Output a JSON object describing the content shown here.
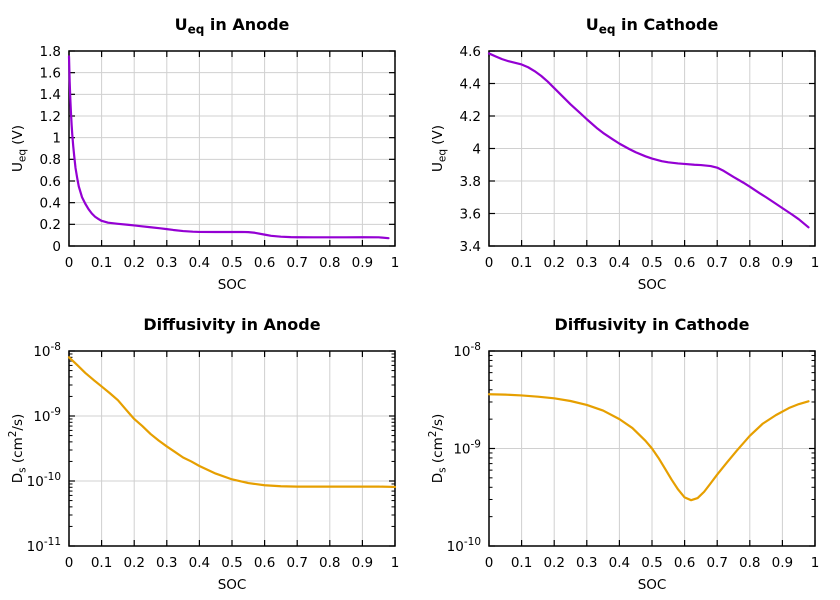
{
  "figure": {
    "background": "#ffffff",
    "text_color": "#000000",
    "grid_color": "#d0d0d0",
    "border_color": "#000000",
    "accent_purple": "#9400d3",
    "accent_orange": "#e69f00"
  },
  "chart_data": [
    {
      "type": "line",
      "title": "U_eq in Anode",
      "title_parts": [
        {
          "t": "U"
        },
        {
          "t": "eq",
          "s": "sub"
        },
        {
          "t": " in Anode"
        }
      ],
      "xlabel": "SOC",
      "ylabel": "U_eq (V)",
      "ylabel_parts": [
        {
          "t": "U"
        },
        {
          "t": "eq",
          "s": "sub"
        },
        {
          "t": " (V)"
        }
      ],
      "x_scale": "linear",
      "y_scale": "linear",
      "xlim": [
        0,
        1
      ],
      "ylim": [
        0,
        1.8
      ],
      "x_tick_values": [
        0,
        0.1,
        0.2,
        0.3,
        0.4,
        0.5,
        0.6,
        0.7,
        0.8,
        0.9,
        1
      ],
      "x_tick_labels": [
        "0",
        "0.1",
        "0.2",
        "0.3",
        "0.4",
        "0.5",
        "0.6",
        "0.7",
        "0.8",
        "0.9",
        "1"
      ],
      "y_tick_values": [
        0,
        0.2,
        0.4,
        0.6,
        0.8,
        1,
        1.2,
        1.4,
        1.6,
        1.8
      ],
      "y_tick_labels": [
        "0",
        "0.2",
        "0.4",
        "0.6",
        "0.8",
        "1",
        "1.2",
        "1.4",
        "1.6",
        "1.8"
      ],
      "grid": true,
      "legend": null,
      "line_color": "#9400d3",
      "line_width": 2.2,
      "points": [
        [
          0,
          1.75
        ],
        [
          0.002,
          1.52
        ],
        [
          0.004,
          1.36
        ],
        [
          0.006,
          1.23
        ],
        [
          0.008,
          1.12
        ],
        [
          0.01,
          1.03
        ],
        [
          0.013,
          0.92
        ],
        [
          0.016,
          0.83
        ],
        [
          0.02,
          0.72
        ],
        [
          0.025,
          0.63
        ],
        [
          0.03,
          0.55
        ],
        [
          0.04,
          0.45
        ],
        [
          0.05,
          0.39
        ],
        [
          0.06,
          0.34
        ],
        [
          0.07,
          0.3
        ],
        [
          0.08,
          0.27
        ],
        [
          0.09,
          0.25
        ],
        [
          0.1,
          0.232
        ],
        [
          0.12,
          0.215
        ],
        [
          0.15,
          0.205
        ],
        [
          0.18,
          0.196
        ],
        [
          0.2,
          0.19
        ],
        [
          0.22,
          0.183
        ],
        [
          0.25,
          0.173
        ],
        [
          0.28,
          0.163
        ],
        [
          0.3,
          0.156
        ],
        [
          0.32,
          0.148
        ],
        [
          0.35,
          0.138
        ],
        [
          0.38,
          0.132
        ],
        [
          0.4,
          0.13
        ],
        [
          0.45,
          0.129
        ],
        [
          0.5,
          0.129
        ],
        [
          0.53,
          0.13
        ],
        [
          0.55,
          0.128
        ],
        [
          0.57,
          0.122
        ],
        [
          0.6,
          0.105
        ],
        [
          0.62,
          0.094
        ],
        [
          0.65,
          0.086
        ],
        [
          0.68,
          0.082
        ],
        [
          0.7,
          0.081
        ],
        [
          0.75,
          0.08
        ],
        [
          0.8,
          0.08
        ],
        [
          0.85,
          0.08
        ],
        [
          0.9,
          0.081
        ],
        [
          0.95,
          0.08
        ],
        [
          0.98,
          0.072
        ]
      ]
    },
    {
      "type": "line",
      "title": "U_eq in Cathode",
      "title_parts": [
        {
          "t": "U"
        },
        {
          "t": "eq",
          "s": "sub"
        },
        {
          "t": " in Cathode"
        }
      ],
      "xlabel": "SOC",
      "ylabel": "U_eq (V)",
      "ylabel_parts": [
        {
          "t": "U"
        },
        {
          "t": "eq",
          "s": "sub"
        },
        {
          "t": " (V)"
        }
      ],
      "x_scale": "linear",
      "y_scale": "linear",
      "xlim": [
        0,
        1
      ],
      "ylim": [
        3.4,
        4.6
      ],
      "x_tick_values": [
        0,
        0.1,
        0.2,
        0.3,
        0.4,
        0.5,
        0.6,
        0.7,
        0.8,
        0.9,
        1
      ],
      "x_tick_labels": [
        "0",
        "0.1",
        "0.2",
        "0.3",
        "0.4",
        "0.5",
        "0.6",
        "0.7",
        "0.8",
        "0.9",
        "1"
      ],
      "y_tick_values": [
        3.4,
        3.6,
        3.8,
        4,
        4.2,
        4.4,
        4.6
      ],
      "y_tick_labels": [
        "3.4",
        "3.6",
        "3.8",
        "4",
        "4.2",
        "4.4",
        "4.6"
      ],
      "grid": true,
      "legend": null,
      "line_color": "#9400d3",
      "line_width": 2.2,
      "points": [
        [
          0,
          4.585
        ],
        [
          0.02,
          4.567
        ],
        [
          0.04,
          4.55
        ],
        [
          0.06,
          4.537
        ],
        [
          0.08,
          4.527
        ],
        [
          0.1,
          4.517
        ],
        [
          0.12,
          4.5
        ],
        [
          0.14,
          4.476
        ],
        [
          0.16,
          4.447
        ],
        [
          0.18,
          4.412
        ],
        [
          0.2,
          4.372
        ],
        [
          0.22,
          4.332
        ],
        [
          0.25,
          4.272
        ],
        [
          0.28,
          4.217
        ],
        [
          0.3,
          4.18
        ],
        [
          0.33,
          4.127
        ],
        [
          0.35,
          4.096
        ],
        [
          0.38,
          4.056
        ],
        [
          0.4,
          4.03
        ],
        [
          0.43,
          3.997
        ],
        [
          0.45,
          3.977
        ],
        [
          0.48,
          3.952
        ],
        [
          0.5,
          3.938
        ],
        [
          0.53,
          3.922
        ],
        [
          0.55,
          3.915
        ],
        [
          0.58,
          3.908
        ],
        [
          0.6,
          3.905
        ],
        [
          0.63,
          3.9
        ],
        [
          0.65,
          3.898
        ],
        [
          0.68,
          3.892
        ],
        [
          0.7,
          3.882
        ],
        [
          0.72,
          3.862
        ],
        [
          0.75,
          3.825
        ],
        [
          0.78,
          3.79
        ],
        [
          0.8,
          3.765
        ],
        [
          0.83,
          3.725
        ],
        [
          0.85,
          3.7
        ],
        [
          0.88,
          3.66
        ],
        [
          0.9,
          3.633
        ],
        [
          0.93,
          3.593
        ],
        [
          0.95,
          3.565
        ],
        [
          0.98,
          3.515
        ]
      ]
    },
    {
      "type": "line",
      "title": "Diffusivity in Anode",
      "title_parts": [
        {
          "t": "Diffusivity in Anode"
        }
      ],
      "xlabel": "SOC",
      "ylabel": "D_s (cm^2/s)",
      "ylabel_parts": [
        {
          "t": "D"
        },
        {
          "t": "s",
          "s": "sub"
        },
        {
          "t": " (cm"
        },
        {
          "t": "2",
          "s": "sup"
        },
        {
          "t": "/s)"
        }
      ],
      "x_scale": "linear",
      "y_scale": "log",
      "xlim": [
        0,
        1
      ],
      "ylim": [
        1e-11,
        1e-08
      ],
      "x_tick_values": [
        0,
        0.1,
        0.2,
        0.3,
        0.4,
        0.5,
        0.6,
        0.7,
        0.8,
        0.9,
        1
      ],
      "x_tick_labels": [
        "0",
        "0.1",
        "0.2",
        "0.3",
        "0.4",
        "0.5",
        "0.6",
        "0.7",
        "0.8",
        "0.9",
        "1"
      ],
      "y_tick_values": [
        1e-11,
        1e-10,
        1e-09,
        1e-08
      ],
      "y_tick_labels": [
        "10^-11",
        "10^-10",
        "10^-9",
        "10^-8"
      ],
      "grid": true,
      "legend": null,
      "line_color": "#e69f00",
      "line_width": 2.2,
      "points": [
        [
          0,
          8e-09
        ],
        [
          0.025,
          6.1e-09
        ],
        [
          0.05,
          4.6e-09
        ],
        [
          0.075,
          3.6e-09
        ],
        [
          0.1,
          2.85e-09
        ],
        [
          0.125,
          2.25e-09
        ],
        [
          0.15,
          1.75e-09
        ],
        [
          0.175,
          1.25e-09
        ],
        [
          0.2,
          9e-10
        ],
        [
          0.225,
          7e-10
        ],
        [
          0.25,
          5.3e-10
        ],
        [
          0.275,
          4.2e-10
        ],
        [
          0.3,
          3.4e-10
        ],
        [
          0.325,
          2.8e-10
        ],
        [
          0.35,
          2.3e-10
        ],
        [
          0.375,
          2e-10
        ],
        [
          0.4,
          1.7e-10
        ],
        [
          0.45,
          1.3e-10
        ],
        [
          0.5,
          1.06e-10
        ],
        [
          0.55,
          9.3e-11
        ],
        [
          0.6,
          8.6e-11
        ],
        [
          0.65,
          8.3e-11
        ],
        [
          0.7,
          8.2e-11
        ],
        [
          0.75,
          8.2e-11
        ],
        [
          0.8,
          8.2e-11
        ],
        [
          0.85,
          8.2e-11
        ],
        [
          0.9,
          8.2e-11
        ],
        [
          0.95,
          8.2e-11
        ],
        [
          1,
          8.1e-11
        ]
      ]
    },
    {
      "type": "line",
      "title": "Diffusivity in Cathode",
      "title_parts": [
        {
          "t": "Diffusivity in Cathode"
        }
      ],
      "xlabel": "SOC",
      "ylabel": "D_s (cm^2/s)",
      "ylabel_parts": [
        {
          "t": "D"
        },
        {
          "t": "s",
          "s": "sub"
        },
        {
          "t": " (cm"
        },
        {
          "t": "2",
          "s": "sup"
        },
        {
          "t": "/s)"
        }
      ],
      "x_scale": "linear",
      "y_scale": "log",
      "xlim": [
        0,
        1
      ],
      "ylim": [
        1e-10,
        1e-08
      ],
      "x_tick_values": [
        0,
        0.1,
        0.2,
        0.3,
        0.4,
        0.5,
        0.6,
        0.7,
        0.8,
        0.9,
        1
      ],
      "x_tick_labels": [
        "0",
        "0.1",
        "0.2",
        "0.3",
        "0.4",
        "0.5",
        "0.6",
        "0.7",
        "0.8",
        "0.9",
        "1"
      ],
      "y_tick_values": [
        1e-10,
        1e-09,
        1e-08
      ],
      "y_tick_labels": [
        "10^-10",
        "10^-9",
        "10^-8"
      ],
      "grid": true,
      "legend": null,
      "line_color": "#e69f00",
      "line_width": 2.2,
      "points": [
        [
          0,
          3.6e-09
        ],
        [
          0.05,
          3.57e-09
        ],
        [
          0.1,
          3.5e-09
        ],
        [
          0.15,
          3.4e-09
        ],
        [
          0.2,
          3.27e-09
        ],
        [
          0.25,
          3.07e-09
        ],
        [
          0.3,
          2.8e-09
        ],
        [
          0.35,
          2.45e-09
        ],
        [
          0.4,
          2e-09
        ],
        [
          0.44,
          1.62e-09
        ],
        [
          0.48,
          1.2e-09
        ],
        [
          0.5,
          1e-09
        ],
        [
          0.52,
          8e-10
        ],
        [
          0.54,
          6.2e-10
        ],
        [
          0.56,
          4.8e-10
        ],
        [
          0.58,
          3.8e-10
        ],
        [
          0.6,
          3.15e-10
        ],
        [
          0.62,
          2.95e-10
        ],
        [
          0.64,
          3.1e-10
        ],
        [
          0.66,
          3.6e-10
        ],
        [
          0.68,
          4.4e-10
        ],
        [
          0.7,
          5.4e-10
        ],
        [
          0.73,
          7.2e-10
        ],
        [
          0.76,
          9.5e-10
        ],
        [
          0.8,
          1.35e-09
        ],
        [
          0.84,
          1.8e-09
        ],
        [
          0.88,
          2.2e-09
        ],
        [
          0.92,
          2.6e-09
        ],
        [
          0.95,
          2.85e-09
        ],
        [
          0.98,
          3.05e-09
        ]
      ]
    }
  ]
}
